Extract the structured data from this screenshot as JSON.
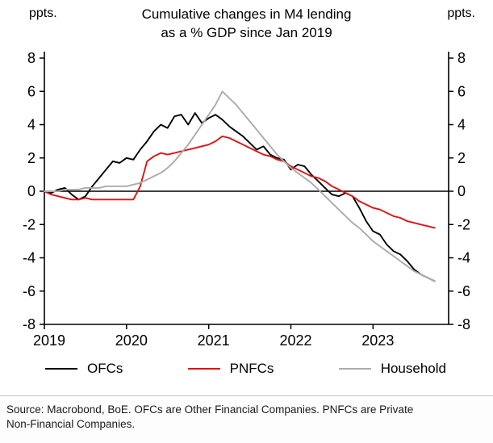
{
  "header": {
    "ppts_left": "ppts.",
    "ppts_right": "ppts.",
    "title_line1": "Cumulative changes in M4 lending",
    "title_line2": "as a % GDP since Jan 2019"
  },
  "footer": {
    "source_line1": "Source: Macrobond, BoE. OFCs are Other Financial Companies. PNFCs are Private",
    "source_line2": "Non-Financial Companies."
  },
  "chart_data": {
    "type": "line",
    "title": "Cumulative changes in M4 lending as a % GDP since Jan 2019",
    "xlabel": "",
    "ylabel": "ppts.",
    "ylim": [
      -8,
      8
    ],
    "yticks": [
      -8,
      -6,
      -4,
      -2,
      0,
      2,
      4,
      6,
      8
    ],
    "xlim": [
      2019,
      2023.92
    ],
    "xticks": [
      2019,
      2020,
      2021,
      2022,
      2023
    ],
    "x_start_year": 2019,
    "x_frequency": "monthly",
    "grid": false,
    "zero_line": true,
    "legend_position": "bottom",
    "axis_color": "#000000",
    "series": [
      {
        "name": "OFCs",
        "color": "#000000",
        "values": [
          0.0,
          -0.1,
          0.1,
          0.2,
          -0.2,
          -0.5,
          -0.3,
          0.3,
          0.8,
          1.3,
          1.8,
          1.7,
          2.0,
          1.9,
          2.5,
          3.0,
          3.6,
          4.0,
          3.8,
          4.5,
          4.6,
          4.0,
          4.7,
          4.1,
          4.4,
          4.6,
          4.3,
          3.9,
          3.6,
          3.3,
          2.9,
          2.5,
          2.7,
          2.2,
          2.0,
          1.9,
          1.3,
          1.6,
          1.5,
          1.0,
          0.6,
          0.2,
          -0.2,
          -0.3,
          -0.1,
          -0.3,
          -1.0,
          -1.8,
          -2.4,
          -2.6,
          -3.2,
          -3.6,
          -3.8,
          -4.2,
          -4.7,
          -5.0,
          -5.2,
          -5.4
        ]
      },
      {
        "name": "PNFCs",
        "color": "#e01212",
        "values": [
          0.0,
          -0.2,
          -0.3,
          -0.4,
          -0.5,
          -0.5,
          -0.4,
          -0.5,
          -0.5,
          -0.5,
          -0.5,
          -0.5,
          -0.5,
          -0.5,
          0.3,
          1.8,
          2.1,
          2.3,
          2.2,
          2.3,
          2.4,
          2.5,
          2.6,
          2.7,
          2.8,
          3.0,
          3.3,
          3.2,
          3.0,
          2.8,
          2.6,
          2.4,
          2.2,
          2.1,
          1.9,
          1.8,
          1.5,
          1.3,
          1.1,
          0.9,
          0.8,
          0.6,
          0.3,
          0.1,
          -0.1,
          -0.3,
          -0.6,
          -0.8,
          -1.0,
          -1.1,
          -1.3,
          -1.5,
          -1.6,
          -1.8,
          -1.9,
          -2.0,
          -2.1,
          -2.2
        ]
      },
      {
        "name": "Household",
        "color": "#ababab",
        "values": [
          0.0,
          0.0,
          0.0,
          0.1,
          0.1,
          0.1,
          0.2,
          0.2,
          0.2,
          0.3,
          0.3,
          0.3,
          0.3,
          0.4,
          0.5,
          0.7,
          0.9,
          1.1,
          1.4,
          1.8,
          2.3,
          2.8,
          3.4,
          4.0,
          4.6,
          5.2,
          6.0,
          5.6,
          5.2,
          4.7,
          4.2,
          3.7,
          3.2,
          2.7,
          2.2,
          1.8,
          1.4,
          1.1,
          0.8,
          0.5,
          0.1,
          -0.3,
          -0.7,
          -1.1,
          -1.5,
          -1.9,
          -2.2,
          -2.6,
          -3.0,
          -3.3,
          -3.6,
          -3.9,
          -4.2,
          -4.5,
          -4.8,
          -5.0,
          -5.2,
          -5.4
        ]
      }
    ]
  }
}
